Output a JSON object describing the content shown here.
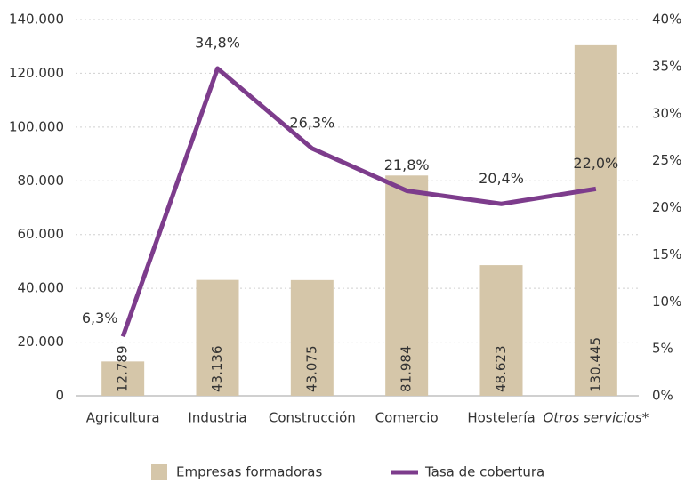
{
  "chart_data": {
    "type": "bar",
    "categories": [
      "Agricultura",
      "Industria",
      "Construcción",
      "Comercio",
      "Hostelería",
      "Otros servicios*"
    ],
    "series": [
      {
        "name": "Empresas formadoras",
        "type": "bar",
        "color": "#d5c6a9",
        "values": [
          12789,
          43136,
          43075,
          81984,
          48623,
          130445
        ],
        "value_labels": [
          "12.789",
          "43.136",
          "43.075",
          "81.984",
          "48.623",
          "130.445"
        ]
      },
      {
        "name": "Tasa de cobertura",
        "type": "line",
        "axis": "y2",
        "color": "#7d3c8c",
        "values": [
          6.3,
          34.8,
          26.3,
          21.8,
          20.4,
          22.0
        ],
        "value_labels": [
          "6,3%",
          "34,8%",
          "26,3%",
          "21,8%",
          "20,4%",
          "22,0%"
        ]
      }
    ],
    "ylim": [
      0,
      140000
    ],
    "yticks": [
      0,
      {
        "value": 20000,
        "label": "20.000"
      },
      {
        "value": 40000,
        "label": "40.000"
      },
      {
        "value": 60000,
        "label": "60.000"
      },
      {
        "value": 80000,
        "label": "80.000"
      },
      {
        "value": 100000,
        "label": "100.000"
      },
      {
        "value": 120000,
        "label": "120.000"
      },
      {
        "value": 140000,
        "label": "140.000"
      }
    ],
    "y2lim": [
      0,
      40
    ],
    "y2ticks": [
      {
        "value": 0,
        "label": "0%"
      },
      {
        "value": 5,
        "label": "5%"
      },
      {
        "value": 10,
        "label": "10%"
      },
      {
        "value": 15,
        "label": "15%"
      },
      {
        "value": 20,
        "label": "20%"
      },
      {
        "value": 25,
        "label": "25%"
      },
      {
        "value": 30,
        "label": "30%"
      },
      {
        "value": 35,
        "label": "35%"
      },
      {
        "value": 40,
        "label": "40%"
      }
    ],
    "grid": true,
    "legend": "bottom"
  }
}
